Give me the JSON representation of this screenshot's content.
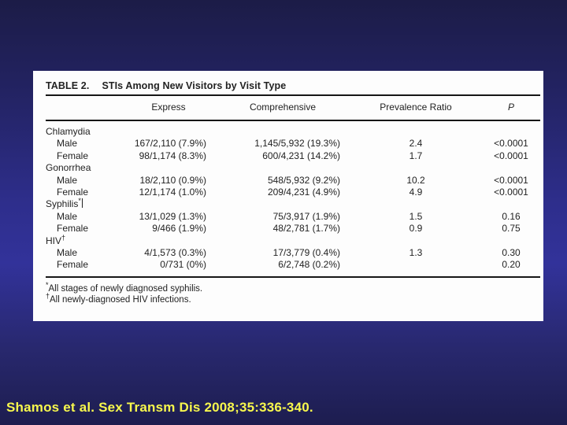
{
  "slide": {
    "citation": "Shamos et al. Sex Transm Dis 2008;35:336-340.",
    "colors": {
      "citation_text": "#f7f74d",
      "background_top": "#1c1c47",
      "background_mid": "#32329a",
      "background_bottom": "#1d1d4f",
      "card_background": "#fdfdfd",
      "table_text": "#222222"
    }
  },
  "table": {
    "heading_label": "TABLE 2.",
    "heading_title": "STIs Among New Visitors by Visit Type",
    "columns": {
      "express": "Express",
      "comprehensive": "Comprehensive",
      "prevalence_ratio": "Prevalence Ratio",
      "p": "P"
    },
    "rows": [
      {
        "type": "group",
        "label": "Chlamydia",
        "marker": ""
      },
      {
        "type": "sub",
        "label": "Male",
        "express": "167/2,110 (7.9%)",
        "comprehensive": "1,145/5,932 (19.3%)",
        "ratio": "2.4",
        "p": "<0.0001"
      },
      {
        "type": "sub",
        "label": "Female",
        "express": "98/1,174 (8.3%)",
        "comprehensive": "600/4,231 (14.2%)",
        "ratio": "1.7",
        "p": "<0.0001"
      },
      {
        "type": "group",
        "label": "Gonorrhea",
        "marker": ""
      },
      {
        "type": "sub",
        "label": "Male",
        "express": "18/2,110 (0.9%)",
        "comprehensive": "548/5,932 (9.2%)",
        "ratio": "10.2",
        "p": "<0.0001"
      },
      {
        "type": "sub",
        "label": "Female",
        "express": "12/1,174 (1.0%)",
        "comprehensive": "209/4,231 (4.9%)",
        "ratio": "4.9",
        "p": "<0.0001"
      },
      {
        "type": "group",
        "label": "Syphilis",
        "marker": "*"
      },
      {
        "type": "sub",
        "label": "Male",
        "express": "13/1,029 (1.3%)",
        "comprehensive": "75/3,917 (1.9%)",
        "ratio": "1.5",
        "p": "0.16"
      },
      {
        "type": "sub",
        "label": "Female",
        "express": "9/466 (1.9%)",
        "comprehensive": "48/2,781 (1.7%)",
        "ratio": "0.9",
        "p": "0.75"
      },
      {
        "type": "group",
        "label": "HIV",
        "marker": "†"
      },
      {
        "type": "sub",
        "label": "Male",
        "express": "4/1,573 (0.3%)",
        "comprehensive": "17/3,779 (0.4%)",
        "ratio": "1.3",
        "p": "0.30"
      },
      {
        "type": "sub",
        "label": "Female",
        "express": "0/731 (0%)",
        "comprehensive": "6/2,748 (0.2%)",
        "ratio": "",
        "p": "0.20"
      }
    ],
    "footnotes": [
      {
        "marker": "*",
        "text": "All stages of newly diagnosed syphilis."
      },
      {
        "marker": "†",
        "text": "All newly-diagnosed HIV infections."
      }
    ]
  }
}
